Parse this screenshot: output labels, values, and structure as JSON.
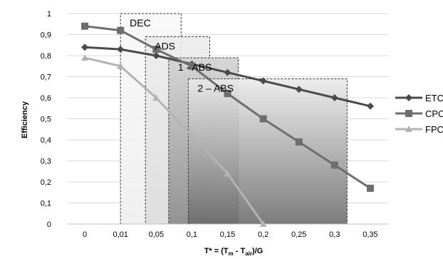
{
  "chart_data": {
    "type": "line",
    "ylabel": "Efficiency",
    "xlabel_parts": {
      "main": "T* =  (T",
      "sub1": "m",
      "mid": " - T",
      "sub2": "air",
      "end": ")/G"
    },
    "categories": [
      "0",
      "0,01",
      "0,05",
      "0,1",
      "0,15",
      "0,2",
      "0,25",
      "0,3",
      "0,35"
    ],
    "ylim": [
      0,
      1
    ],
    "yticks": [
      "0",
      "0,1",
      "0,2",
      "0,3",
      "0,4",
      "0,5",
      "0,6",
      "0,7",
      "0,8",
      "0,9",
      "1"
    ],
    "grid": "horizontal",
    "legend_position": "right",
    "series": [
      {
        "name": "ETC",
        "marker": "diamond",
        "color": "#4a4a4a",
        "values": [
          0.84,
          0.83,
          0.8,
          0.76,
          0.72,
          0.68,
          0.64,
          0.6,
          0.56
        ]
      },
      {
        "name": "CPC",
        "marker": "square",
        "color": "#6e6e6e",
        "values": [
          0.94,
          0.92,
          0.83,
          0.75,
          0.62,
          0.5,
          0.39,
          0.28,
          0.17
        ]
      },
      {
        "name": "FPC",
        "marker": "triangle",
        "color": "#b3b3b3",
        "values": [
          0.79,
          0.75,
          0.6,
          0.42,
          0.24,
          0.0,
          null,
          null,
          null
        ]
      }
    ],
    "regions": [
      {
        "label": "DEC",
        "x_from": 1.5,
        "x_to": 3.2,
        "y_top": 1.0,
        "fill_top": "#f7f7f7",
        "fill_bottom": "#eeeeee"
      },
      {
        "label": "ADS",
        "x_from": 2.2,
        "x_to": 4.0,
        "y_top": 0.89,
        "fill_top": "#ececec",
        "fill_bottom": "#dcdcdc"
      },
      {
        "label": "1 - ABS",
        "x_from": 2.85,
        "x_to": 4.8,
        "y_top": 0.79,
        "fill_top": "#d2d2d2",
        "fill_bottom": "#888888"
      },
      {
        "label": "2 – ABS",
        "x_from": 3.4,
        "x_to": 7.85,
        "y_top": 0.69,
        "fill_top": "#ebebeb",
        "fill_bottom": "#6a6a6a"
      }
    ]
  }
}
